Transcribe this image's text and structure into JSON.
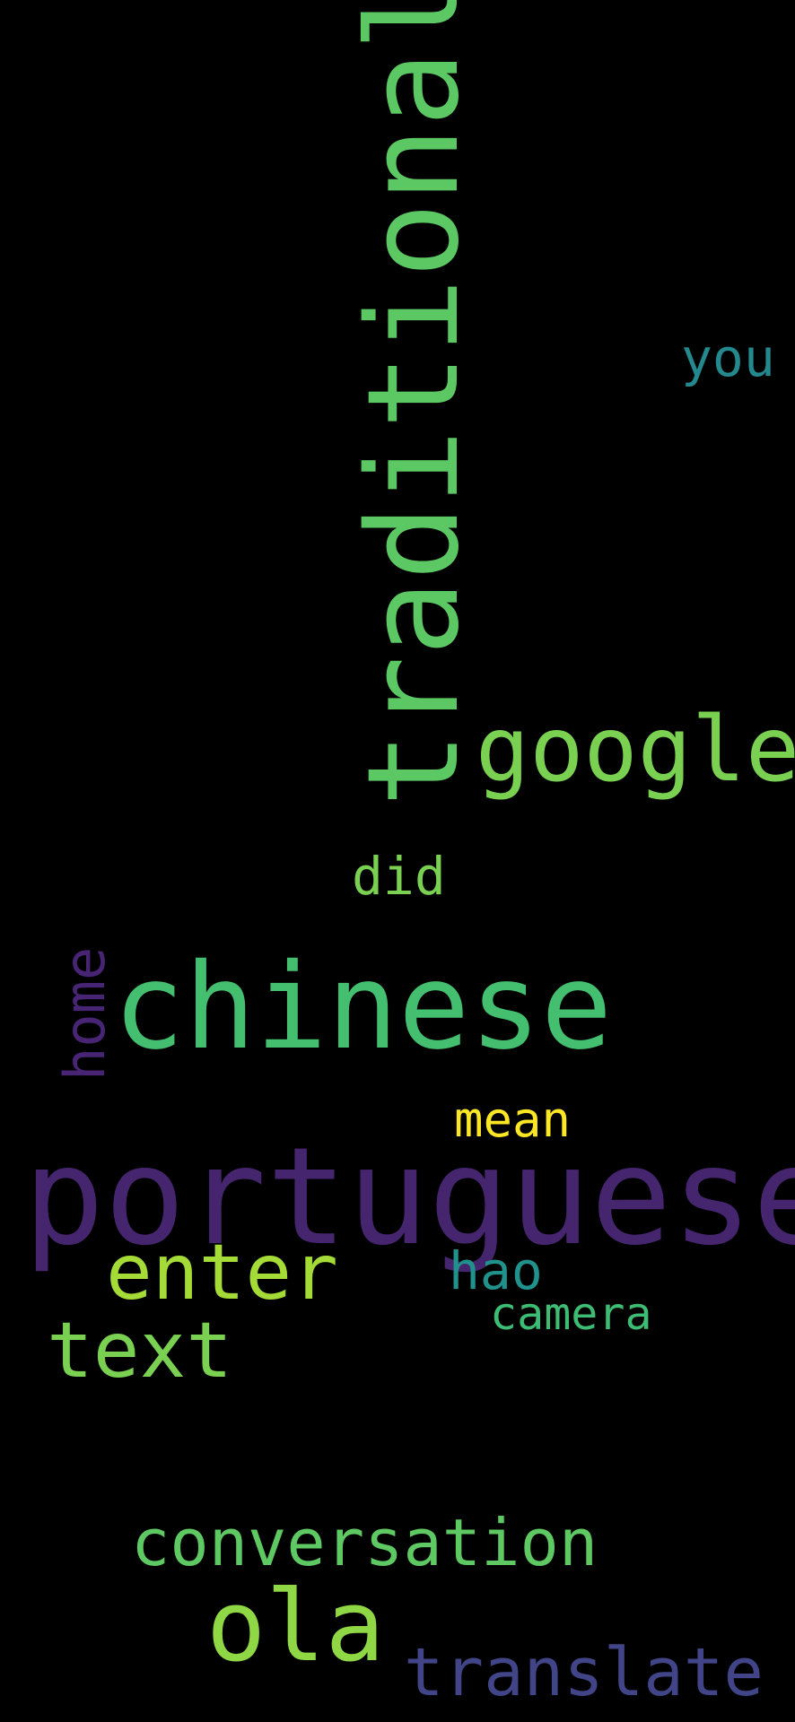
{
  "background_color": "#000000",
  "words": {
    "traditional": {
      "text": "traditional",
      "color": "#5cc863",
      "orientation": "vertical"
    },
    "you": {
      "text": "you",
      "color": "#23898e",
      "orientation": "horizontal"
    },
    "google": {
      "text": "google",
      "color": "#7ad151",
      "orientation": "horizontal"
    },
    "did": {
      "text": "did",
      "color": "#7ad151",
      "orientation": "horizontal"
    },
    "home": {
      "text": "home",
      "color": "#482475",
      "orientation": "vertical"
    },
    "chinese": {
      "text": "chinese",
      "color": "#44bf70",
      "orientation": "horizontal"
    },
    "mean": {
      "text": "mean",
      "color": "#fde725",
      "orientation": "horizontal"
    },
    "portuguese": {
      "text": "portuguese",
      "color": "#46256f",
      "orientation": "horizontal"
    },
    "enter": {
      "text": "enter",
      "color": "#a5db36",
      "orientation": "horizontal"
    },
    "hao": {
      "text": "hao",
      "color": "#21918c",
      "orientation": "horizontal"
    },
    "camera": {
      "text": "camera",
      "color": "#3dbc74",
      "orientation": "horizontal"
    },
    "text": {
      "text": "text",
      "color": "#7ad151",
      "orientation": "horizontal"
    },
    "conversation": {
      "text": "conversation",
      "color": "#5ec962",
      "orientation": "horizontal"
    },
    "ola": {
      "text": "ola",
      "color": "#8fd744",
      "orientation": "horizontal"
    },
    "translate": {
      "text": "translate",
      "color": "#414487",
      "orientation": "horizontal"
    }
  }
}
